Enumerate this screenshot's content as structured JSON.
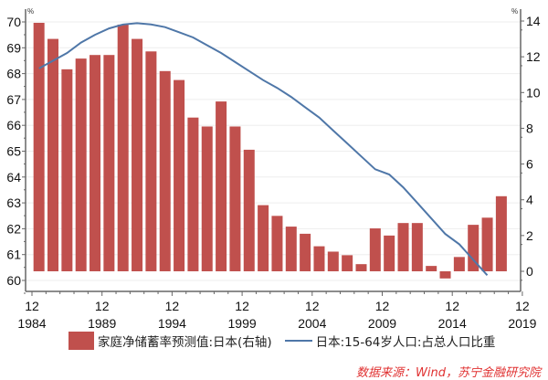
{
  "chart_data": {
    "type": "bar+line",
    "categories": [
      "1984",
      "1985",
      "1986",
      "1987",
      "1988",
      "1989",
      "1990",
      "1991",
      "1992",
      "1993",
      "1994",
      "1995",
      "1996",
      "1997",
      "1998",
      "1999",
      "2000",
      "2001",
      "2002",
      "2003",
      "2004",
      "2005",
      "2006",
      "2007",
      "2008",
      "2009",
      "2010",
      "2011",
      "2012",
      "2013",
      "2014",
      "2015",
      "2016",
      "2017"
    ],
    "series": [
      {
        "name": "家庭净储蓄率预测值:日本(右轴)",
        "type": "bar",
        "axis": "right",
        "color": "#c0504d",
        "values": [
          13.9,
          13.0,
          11.3,
          11.9,
          12.1,
          12.1,
          13.8,
          13.0,
          12.3,
          11.2,
          10.7,
          8.6,
          8.1,
          9.5,
          8.1,
          6.8,
          3.7,
          3.1,
          2.5,
          2.1,
          1.4,
          1.1,
          0.9,
          0.4,
          2.4,
          2.0,
          2.7,
          2.7,
          0.3,
          -0.4,
          0.8,
          2.6,
          3.0,
          4.2
        ]
      },
      {
        "name": "日本:15-64岁人口:占总人口比重",
        "type": "line",
        "axis": "left",
        "color": "#4f77a8",
        "values": [
          68.2,
          68.5,
          68.8,
          69.2,
          69.5,
          69.75,
          69.9,
          69.95,
          69.9,
          69.8,
          69.6,
          69.4,
          69.1,
          68.8,
          68.45,
          68.1,
          67.75,
          67.45,
          67.1,
          66.7,
          66.3,
          65.8,
          65.3,
          64.8,
          64.3,
          64.1,
          63.6,
          63.0,
          62.4,
          61.8,
          61.4,
          60.8,
          60.2,
          null
        ]
      }
    ],
    "left_axis": {
      "unit": "%",
      "ylim": [
        60,
        70
      ],
      "ticks": [
        "60",
        "61",
        "62",
        "63",
        "64",
        "65",
        "66",
        "67",
        "68",
        "69",
        "70"
      ]
    },
    "right_axis": {
      "unit": "%",
      "ylim": [
        -1,
        14
      ],
      "ticks": [
        "0",
        "2",
        "4",
        "6",
        "8",
        "10",
        "12",
        "14"
      ]
    },
    "x_ticks": [
      {
        "month": "12",
        "year": "1984"
      },
      {
        "month": "12",
        "year": "1989"
      },
      {
        "month": "12",
        "year": "1994"
      },
      {
        "month": "12",
        "year": "1999"
      },
      {
        "month": "12",
        "year": "2004"
      },
      {
        "month": "12",
        "year": "2009"
      },
      {
        "month": "12",
        "year": "2014"
      },
      {
        "month": "12",
        "year": "2019"
      }
    ],
    "legend_position": "bottom",
    "grid": true
  },
  "source": "数据来源：Wind，苏宁金融研究院"
}
